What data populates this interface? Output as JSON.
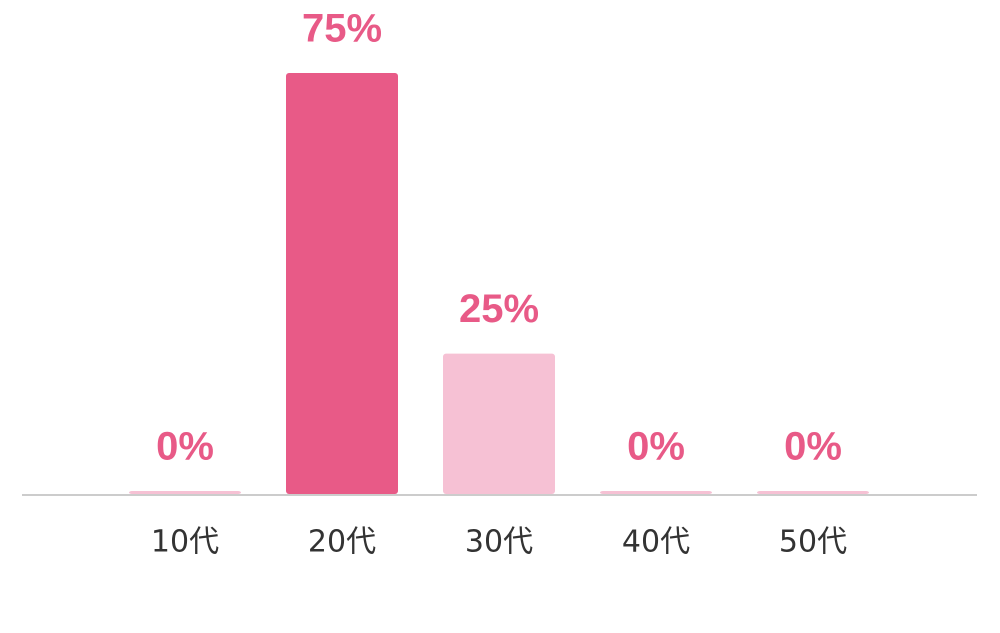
{
  "chart_data": {
    "type": "bar",
    "categories": [
      "10代",
      "20代",
      "30代",
      "40代",
      "50代"
    ],
    "values": [
      0,
      75,
      25,
      0,
      0
    ],
    "value_labels": [
      "0%",
      "75%",
      "25%",
      "0%",
      "0%"
    ],
    "colors": [
      "#f6c1d4",
      "#e85a87",
      "#f6c1d4",
      "#f6c1d4",
      "#f6c1d4"
    ],
    "label_color": "#e85a87",
    "ylim": [
      0,
      75
    ],
    "grid": false
  }
}
